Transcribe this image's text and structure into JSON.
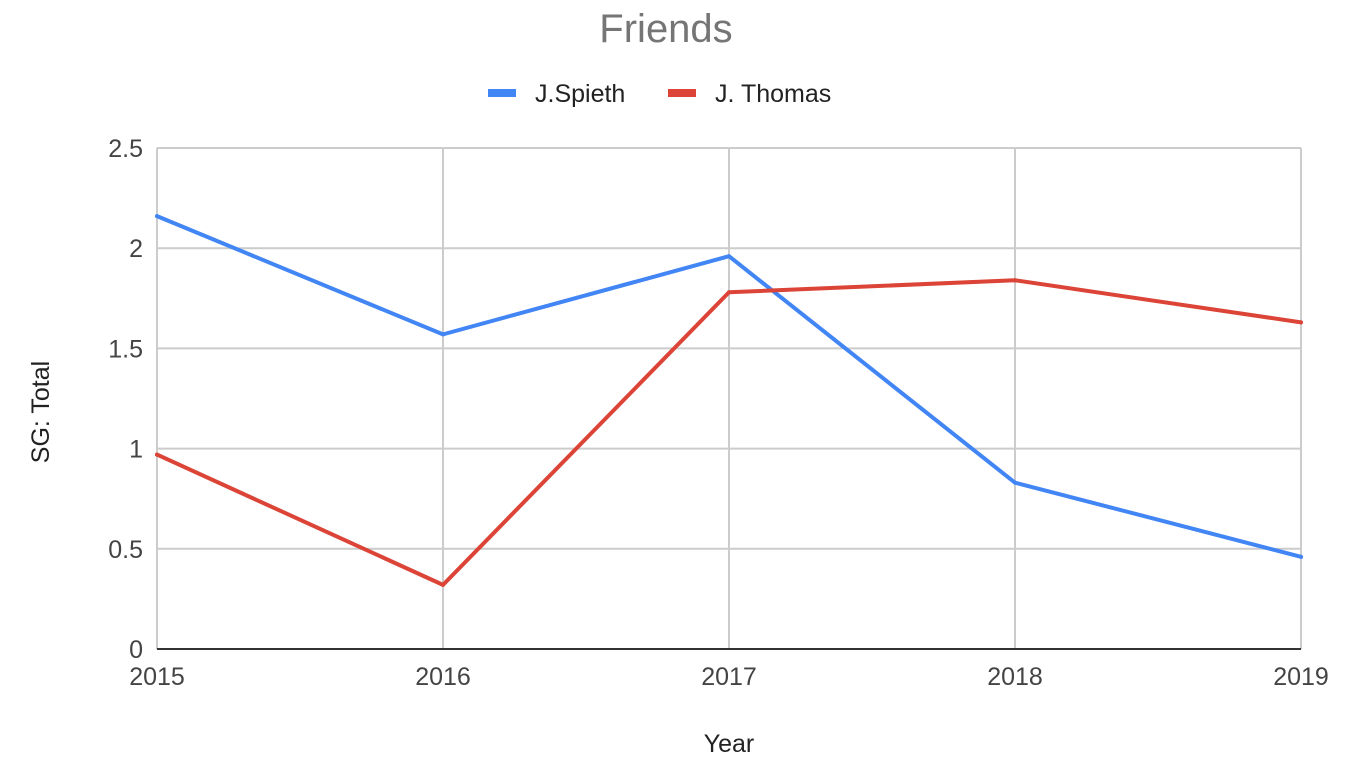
{
  "chart_data": {
    "type": "line",
    "title": "Friends",
    "xlabel": "Year",
    "ylabel": "SG: Total",
    "x": [
      "2015",
      "2016",
      "2017",
      "2018",
      "2019"
    ],
    "ylim": [
      0,
      2.5
    ],
    "yticks": [
      "0",
      "0.5",
      "1",
      "1.5",
      "2",
      "2.5"
    ],
    "grid": true,
    "legend": "top",
    "series": [
      {
        "name": "J.Spieth",
        "color": "#4285f4",
        "values": [
          2.16,
          1.57,
          1.96,
          0.83,
          0.46
        ]
      },
      {
        "name": "J. Thomas",
        "color": "#db4437",
        "values": [
          0.97,
          0.32,
          1.78,
          1.84,
          1.63
        ]
      }
    ]
  }
}
